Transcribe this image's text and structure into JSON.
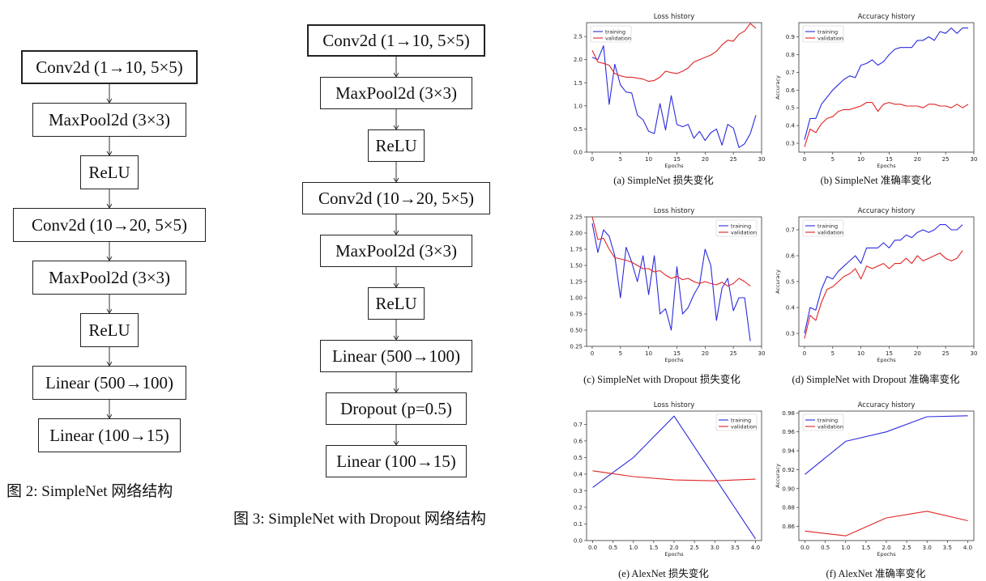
{
  "fig2": {
    "caption": "图 2: SimpleNet 网络结构",
    "layers": [
      "Conv2d (1→10, 5×5)",
      "MaxPool2d (3×3)",
      "ReLU",
      "Conv2d (10→20, 5×5)",
      "MaxPool2d (3×3)",
      "ReLU",
      "Linear (500→100)",
      "Linear (100→15)"
    ]
  },
  "fig3": {
    "caption": "图 3: SimpleNet with Dropout 网络结构",
    "layers": [
      "Conv2d (1→10, 5×5)",
      "MaxPool2d (3×3)",
      "ReLU",
      "Conv2d (10→20, 5×5)",
      "MaxPool2d (3×3)",
      "ReLU",
      "Linear (500→100)",
      "Dropout (p=0.5)",
      "Linear (100→15)"
    ]
  },
  "colors": {
    "training": "#2b2bdd",
    "validation": "#e02424"
  },
  "chart_data": [
    {
      "id": "a",
      "type": "line",
      "title": "Loss history",
      "caption": "(a) SimpleNet 损失变化",
      "xlabel": "Epochs",
      "ylabel": "",
      "xlim": [
        -1,
        30
      ],
      "ylim": [
        0,
        2.8
      ],
      "xticks": [
        "0",
        "5",
        "10",
        "15",
        "20",
        "25",
        "30"
      ],
      "xtick_values": [
        0,
        5,
        10,
        15,
        20,
        25,
        30
      ],
      "yticks": [
        "0.0",
        "0.5",
        "1.0",
        "1.5",
        "2.0",
        "2.5"
      ],
      "ytick_values": [
        0,
        0.5,
        1,
        1.5,
        2,
        2.5
      ],
      "legend": "top-left",
      "series": [
        {
          "name": "training",
          "values": [
            2.05,
            2.0,
            2.3,
            1.03,
            1.9,
            1.45,
            1.3,
            1.28,
            0.8,
            0.7,
            0.45,
            0.4,
            1.05,
            0.48,
            1.22,
            0.6,
            0.55,
            0.6,
            0.3,
            0.45,
            0.25,
            0.42,
            0.5,
            0.15,
            0.6,
            0.52,
            0.1,
            0.18,
            0.4,
            0.8
          ]
        },
        {
          "name": "validation",
          "values": [
            2.2,
            1.95,
            1.92,
            1.88,
            1.7,
            1.65,
            1.62,
            1.62,
            1.6,
            1.58,
            1.53,
            1.55,
            1.62,
            1.75,
            1.72,
            1.7,
            1.75,
            1.82,
            1.95,
            2.0,
            2.05,
            2.1,
            2.18,
            2.32,
            2.42,
            2.4,
            2.55,
            2.62,
            2.78,
            2.68
          ]
        }
      ]
    },
    {
      "id": "b",
      "type": "line",
      "title": "Accuracy history",
      "caption": "(b) SimpleNet 准确率变化",
      "xlabel": "Epochs",
      "ylabel": "Accuracy",
      "xlim": [
        -1,
        30
      ],
      "ylim": [
        0.25,
        0.98
      ],
      "xticks": [
        "0",
        "5",
        "10",
        "15",
        "20",
        "25",
        "30"
      ],
      "xtick_values": [
        0,
        5,
        10,
        15,
        20,
        25,
        30
      ],
      "yticks": [
        "0.3",
        "0.4",
        "0.5",
        "0.6",
        "0.7",
        "0.8",
        "0.9"
      ],
      "ytick_values": [
        0.3,
        0.4,
        0.5,
        0.6,
        0.7,
        0.8,
        0.9
      ],
      "legend": "top-left",
      "series": [
        {
          "name": "training",
          "values": [
            0.32,
            0.44,
            0.44,
            0.52,
            0.56,
            0.6,
            0.63,
            0.66,
            0.68,
            0.67,
            0.74,
            0.75,
            0.77,
            0.74,
            0.76,
            0.8,
            0.83,
            0.84,
            0.84,
            0.84,
            0.88,
            0.88,
            0.9,
            0.88,
            0.93,
            0.92,
            0.95,
            0.92,
            0.95,
            0.95
          ]
        },
        {
          "name": "validation",
          "values": [
            0.28,
            0.38,
            0.36,
            0.41,
            0.44,
            0.45,
            0.48,
            0.49,
            0.49,
            0.5,
            0.51,
            0.53,
            0.53,
            0.48,
            0.52,
            0.53,
            0.52,
            0.52,
            0.51,
            0.51,
            0.51,
            0.5,
            0.52,
            0.52,
            0.51,
            0.51,
            0.5,
            0.52,
            0.5,
            0.52
          ]
        }
      ]
    },
    {
      "id": "c",
      "type": "line",
      "title": "Loss history",
      "caption": "(c) SimpleNet with Dropout 损失变化",
      "xlabel": "Epochs",
      "ylabel": "",
      "xlim": [
        -1,
        30
      ],
      "ylim": [
        0.25,
        2.25
      ],
      "xticks": [
        "0",
        "5",
        "10",
        "15",
        "20",
        "25",
        "30"
      ],
      "xtick_values": [
        0,
        5,
        10,
        15,
        20,
        25,
        30
      ],
      "yticks": [
        "0.25",
        "0.50",
        "0.75",
        "1.00",
        "1.25",
        "1.50",
        "1.75",
        "2.00",
        "2.25"
      ],
      "ytick_values": [
        0.25,
        0.5,
        0.75,
        1,
        1.25,
        1.5,
        1.75,
        2,
        2.25
      ],
      "legend": "top-right",
      "series": [
        {
          "name": "training",
          "values": [
            2.15,
            1.7,
            2.05,
            1.95,
            1.65,
            1.0,
            1.78,
            1.55,
            1.25,
            1.65,
            1.05,
            1.65,
            0.75,
            0.83,
            0.5,
            1.48,
            0.75,
            0.85,
            1.05,
            1.2,
            1.75,
            1.5,
            0.65,
            1.15,
            1.3,
            0.8,
            1.0,
            1.0,
            0.33
          ]
        },
        {
          "name": "validation",
          "values": [
            2.25,
            1.9,
            1.92,
            1.75,
            1.62,
            1.6,
            1.58,
            1.55,
            1.5,
            1.45,
            1.45,
            1.4,
            1.42,
            1.35,
            1.3,
            1.33,
            1.28,
            1.3,
            1.25,
            1.22,
            1.25,
            1.22,
            1.2,
            1.24,
            1.18,
            1.22,
            1.3,
            1.25,
            1.18
          ]
        }
      ]
    },
    {
      "id": "d",
      "type": "line",
      "title": "Accuracy history",
      "caption": "(d) SimpleNet with Dropout 准确率变化",
      "xlabel": "Epochs",
      "ylabel": "Accuracy",
      "xlim": [
        -1,
        30
      ],
      "ylim": [
        0.25,
        0.75
      ],
      "xticks": [
        "0",
        "5",
        "10",
        "15",
        "20",
        "25",
        "30"
      ],
      "xtick_values": [
        0,
        5,
        10,
        15,
        20,
        25,
        30
      ],
      "yticks": [
        "0.3",
        "0.4",
        "0.5",
        "0.6",
        "0.7"
      ],
      "ytick_values": [
        0.3,
        0.4,
        0.5,
        0.6,
        0.7
      ],
      "legend": "top-left",
      "series": [
        {
          "name": "training",
          "values": [
            0.3,
            0.4,
            0.39,
            0.47,
            0.52,
            0.51,
            0.54,
            0.56,
            0.58,
            0.6,
            0.57,
            0.63,
            0.63,
            0.63,
            0.65,
            0.63,
            0.66,
            0.66,
            0.68,
            0.67,
            0.69,
            0.7,
            0.69,
            0.7,
            0.72,
            0.72,
            0.7,
            0.7,
            0.72
          ]
        },
        {
          "name": "validation",
          "values": [
            0.28,
            0.37,
            0.35,
            0.42,
            0.47,
            0.48,
            0.5,
            0.52,
            0.53,
            0.55,
            0.51,
            0.56,
            0.55,
            0.56,
            0.57,
            0.55,
            0.57,
            0.57,
            0.59,
            0.57,
            0.6,
            0.58,
            0.59,
            0.6,
            0.61,
            0.59,
            0.58,
            0.59,
            0.62
          ]
        }
      ]
    },
    {
      "id": "e",
      "type": "line",
      "title": "Loss history",
      "caption": "(e) AlexNet 损失变化",
      "xlabel": "Epochs",
      "ylabel": "",
      "xlim": [
        -0.15,
        4.15
      ],
      "ylim": [
        0,
        0.78
      ],
      "xticks": [
        "0.0",
        "0.5",
        "1.0",
        "1.5",
        "2.0",
        "2.5",
        "3.0",
        "3.5",
        "4.0"
      ],
      "xtick_values": [
        0,
        0.5,
        1,
        1.5,
        2,
        2.5,
        3,
        3.5,
        4
      ],
      "yticks": [
        "0.0",
        "0.1",
        "0.2",
        "0.3",
        "0.4",
        "0.5",
        "0.6",
        "0.7"
      ],
      "ytick_values": [
        0,
        0.1,
        0.2,
        0.3,
        0.4,
        0.5,
        0.6,
        0.7
      ],
      "legend": "top-right",
      "x": [
        0,
        1,
        2,
        3,
        4
      ],
      "series": [
        {
          "name": "training",
          "values": [
            0.32,
            0.5,
            0.75,
            0.38,
            0.01
          ]
        },
        {
          "name": "validation",
          "values": [
            0.42,
            0.385,
            0.365,
            0.36,
            0.37
          ]
        }
      ]
    },
    {
      "id": "f",
      "type": "line",
      "title": "Accuracy history",
      "caption": "(f) AlexNet 准确率变化",
      "xlabel": "Epochs",
      "ylabel": "Accuracy",
      "xlim": [
        -0.15,
        4.15
      ],
      "ylim": [
        0.845,
        0.982
      ],
      "xticks": [
        "0.0",
        "0.5",
        "1.0",
        "1.5",
        "2.0",
        "2.5",
        "3.0",
        "3.5",
        "4.0"
      ],
      "xtick_values": [
        0,
        0.5,
        1,
        1.5,
        2,
        2.5,
        3,
        3.5,
        4
      ],
      "yticks": [
        "0.86",
        "0.88",
        "0.90",
        "0.92",
        "0.94",
        "0.96",
        "0.98"
      ],
      "ytick_values": [
        0.86,
        0.88,
        0.9,
        0.92,
        0.94,
        0.96,
        0.98
      ],
      "legend": "top-left",
      "x": [
        0,
        1,
        2,
        3,
        4
      ],
      "series": [
        {
          "name": "training",
          "values": [
            0.915,
            0.95,
            0.96,
            0.976,
            0.977
          ]
        },
        {
          "name": "validation",
          "values": [
            0.855,
            0.85,
            0.869,
            0.876,
            0.866
          ]
        }
      ]
    }
  ]
}
